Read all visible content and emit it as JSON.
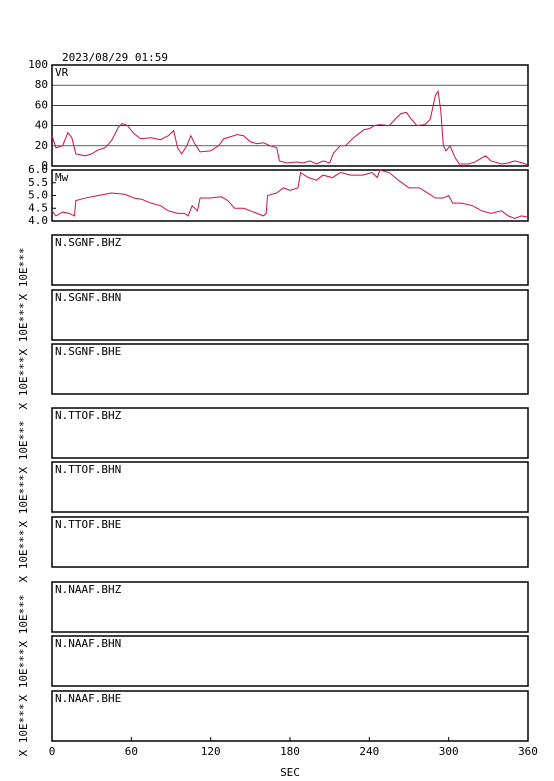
{
  "title": "2023/08/29 01:59",
  "x_axis": {
    "label": "SEC",
    "xlim": [
      0,
      360
    ],
    "xticks": [
      0,
      60,
      120,
      180,
      240,
      300,
      360
    ]
  },
  "chart_data": [
    {
      "type": "line",
      "label": "VR",
      "color": "#cc1144",
      "grid": true,
      "ylim": [
        0,
        100
      ],
      "yticks": [
        0,
        20,
        40,
        60,
        80,
        100
      ],
      "x": [
        0,
        3,
        8,
        12,
        15,
        18,
        25,
        30,
        35,
        40,
        45,
        50,
        53,
        57,
        62,
        67,
        75,
        82,
        88,
        92,
        95,
        98,
        102,
        105,
        108,
        112,
        120,
        126,
        130,
        135,
        140,
        145,
        150,
        155,
        160,
        165,
        170,
        172,
        178,
        185,
        190,
        195,
        200,
        205,
        210,
        213,
        218,
        222,
        228,
        232,
        236,
        240,
        244,
        248,
        255,
        260,
        264,
        268,
        272,
        276,
        282,
        286,
        290,
        292,
        294,
        296,
        298,
        301,
        305,
        308,
        315,
        320,
        325,
        328,
        332,
        340,
        345,
        350,
        356,
        360
      ],
      "values": [
        30,
        18,
        20,
        33,
        28,
        12,
        10,
        12,
        16,
        18,
        25,
        38,
        42,
        40,
        32,
        27,
        28,
        26,
        30,
        35,
        18,
        12,
        20,
        30,
        22,
        14,
        15,
        20,
        27,
        29,
        31,
        30,
        24,
        22,
        23,
        20,
        18,
        5,
        3,
        4,
        3,
        5,
        2,
        5,
        3,
        13,
        20,
        20,
        28,
        32,
        36,
        37,
        40,
        41,
        40,
        47,
        52,
        53,
        46,
        40,
        41,
        46,
        70,
        74,
        55,
        20,
        15,
        20,
        8,
        2,
        2,
        4,
        8,
        10,
        5,
        2,
        3,
        5,
        3,
        1
      ]
    },
    {
      "type": "line",
      "label": "Mw",
      "color": "#cc1144",
      "grid": false,
      "ylim": [
        4.0,
        6.0
      ],
      "yticks": [
        {
          "value": 4.0,
          "label": "4.0"
        },
        4.5,
        {
          "value": 5.0,
          "label": "5.0"
        },
        5.5,
        {
          "value": 6.0,
          "label": "6.0"
        }
      ],
      "x": [
        0,
        3,
        8,
        13,
        17,
        18,
        25,
        35,
        45,
        55,
        62,
        68,
        75,
        82,
        88,
        95,
        100,
        103,
        106,
        110,
        112,
        120,
        128,
        133,
        138,
        145,
        150,
        155,
        160,
        162,
        163,
        170,
        175,
        180,
        186,
        188,
        194,
        200,
        205,
        212,
        218,
        226,
        235,
        242,
        246,
        248,
        255,
        262,
        270,
        278,
        284,
        290,
        296,
        300,
        303,
        310,
        318,
        325,
        332,
        340,
        345,
        350,
        355,
        360
      ],
      "values": [
        4.4,
        4.2,
        4.35,
        4.3,
        4.2,
        4.8,
        4.9,
        5.0,
        5.1,
        5.05,
        4.9,
        4.85,
        4.7,
        4.6,
        4.4,
        4.3,
        4.3,
        4.2,
        4.6,
        4.4,
        4.9,
        4.9,
        4.95,
        4.8,
        4.5,
        4.5,
        4.4,
        4.3,
        4.2,
        4.3,
        5.0,
        5.1,
        5.3,
        5.2,
        5.3,
        5.9,
        5.7,
        5.6,
        5.8,
        5.7,
        5.9,
        5.8,
        5.8,
        5.9,
        5.7,
        6.0,
        5.9,
        5.6,
        5.3,
        5.3,
        5.1,
        4.9,
        4.9,
        5.0,
        4.7,
        4.7,
        4.6,
        4.4,
        4.3,
        4.4,
        4.2,
        4.1,
        4.2,
        4.15
      ]
    }
  ],
  "stations": [
    {
      "label": "N.SGNF.BHZ",
      "scale_label": "X 10E***"
    },
    {
      "label": "N.SGNF.BHN",
      "scale_label": "X 10E***"
    },
    {
      "label": "N.SGNF.BHE",
      "scale_label": "X 10E***"
    },
    {
      "label": "N.TTOF.BHZ",
      "scale_label": "X 10E***"
    },
    {
      "label": "N.TTOF.BHN",
      "scale_label": "X 10E***"
    },
    {
      "label": "N.TTOF.BHE",
      "scale_label": "X 10E***"
    },
    {
      "label": "N.NAAF.BHZ",
      "scale_label": "X 10E***"
    },
    {
      "label": "N.NAAF.BHN",
      "scale_label": "X 10E***"
    },
    {
      "label": "N.NAAF.BHE",
      "scale_label": "X 10E***"
    }
  ]
}
